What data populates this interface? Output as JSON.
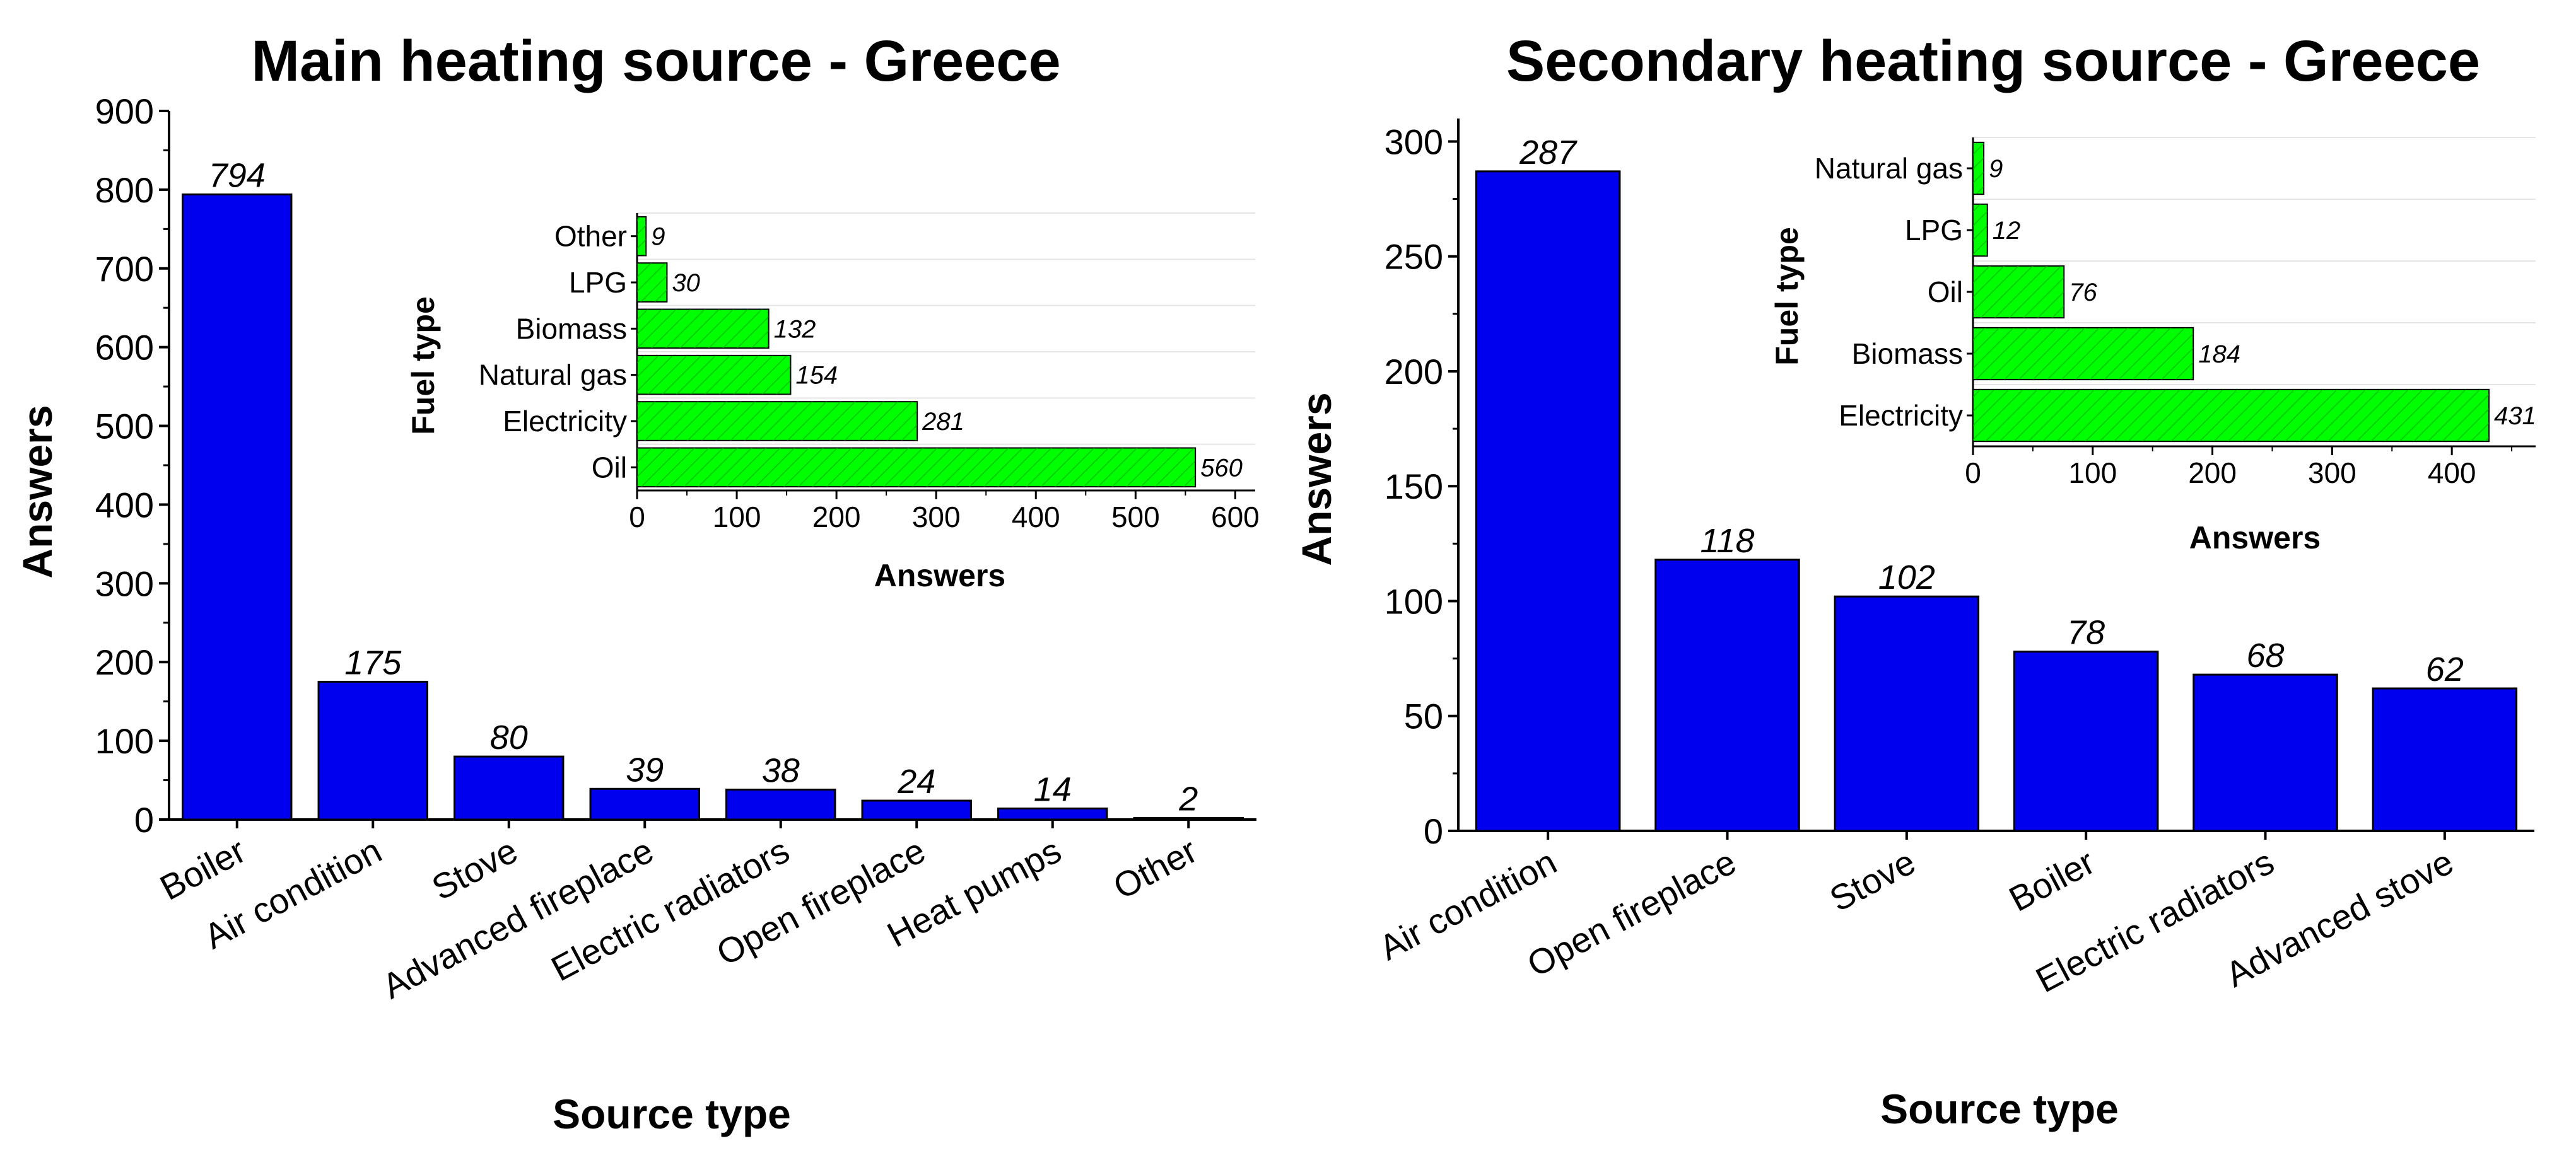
{
  "chart_data": [
    {
      "type": "bar",
      "title": "Main heating source - Greece",
      "xlabel": "Source type",
      "ylabel": "Answers",
      "ylim": [
        0,
        900
      ],
      "yticks": [
        0,
        100,
        200,
        300,
        400,
        500,
        600,
        700,
        800,
        900
      ],
      "categories": [
        "Boiler",
        "Air condition",
        "Stove",
        "Advanced fireplace",
        "Electric radiators",
        "Open fireplace",
        "Heat pumps",
        "Other"
      ],
      "values": [
        794,
        175,
        80,
        39,
        38,
        24,
        14,
        2
      ],
      "bar_color": "#0000ee",
      "inset": {
        "type": "bar",
        "orientation": "horizontal",
        "xlabel": "Answers",
        "ylabel": "Fuel type",
        "xlim": [
          0,
          620
        ],
        "xticks": [
          0,
          100,
          200,
          300,
          400,
          500,
          600
        ],
        "categories": [
          "Other",
          "LPG",
          "Biomass",
          "Natural gas",
          "Electricity",
          "Oil"
        ],
        "values": [
          9,
          30,
          132,
          154,
          281,
          560
        ],
        "bar_color": "#00ff00"
      }
    },
    {
      "type": "bar",
      "title": "Secondary heating source - Greece",
      "xlabel": "Source type",
      "ylabel": "Answers",
      "ylim": [
        0,
        310
      ],
      "yticks": [
        0,
        50,
        100,
        150,
        200,
        250,
        300
      ],
      "categories": [
        "Air condition",
        "Open fireplace",
        "Stove",
        "Boiler",
        "Electric radiators",
        "Advanced stove"
      ],
      "values": [
        287,
        118,
        102,
        78,
        68,
        62
      ],
      "bar_color": "#0000ee",
      "inset": {
        "type": "bar",
        "orientation": "horizontal",
        "xlabel": "Answers",
        "ylabel": "Fuel type",
        "xlim": [
          0,
          470
        ],
        "xticks": [
          0,
          100,
          200,
          300,
          400
        ],
        "categories": [
          "Natural gas",
          "LPG",
          "Oil",
          "Biomass",
          "Electricity"
        ],
        "values": [
          9,
          12,
          76,
          184,
          431
        ],
        "bar_color": "#00ff00"
      }
    }
  ]
}
